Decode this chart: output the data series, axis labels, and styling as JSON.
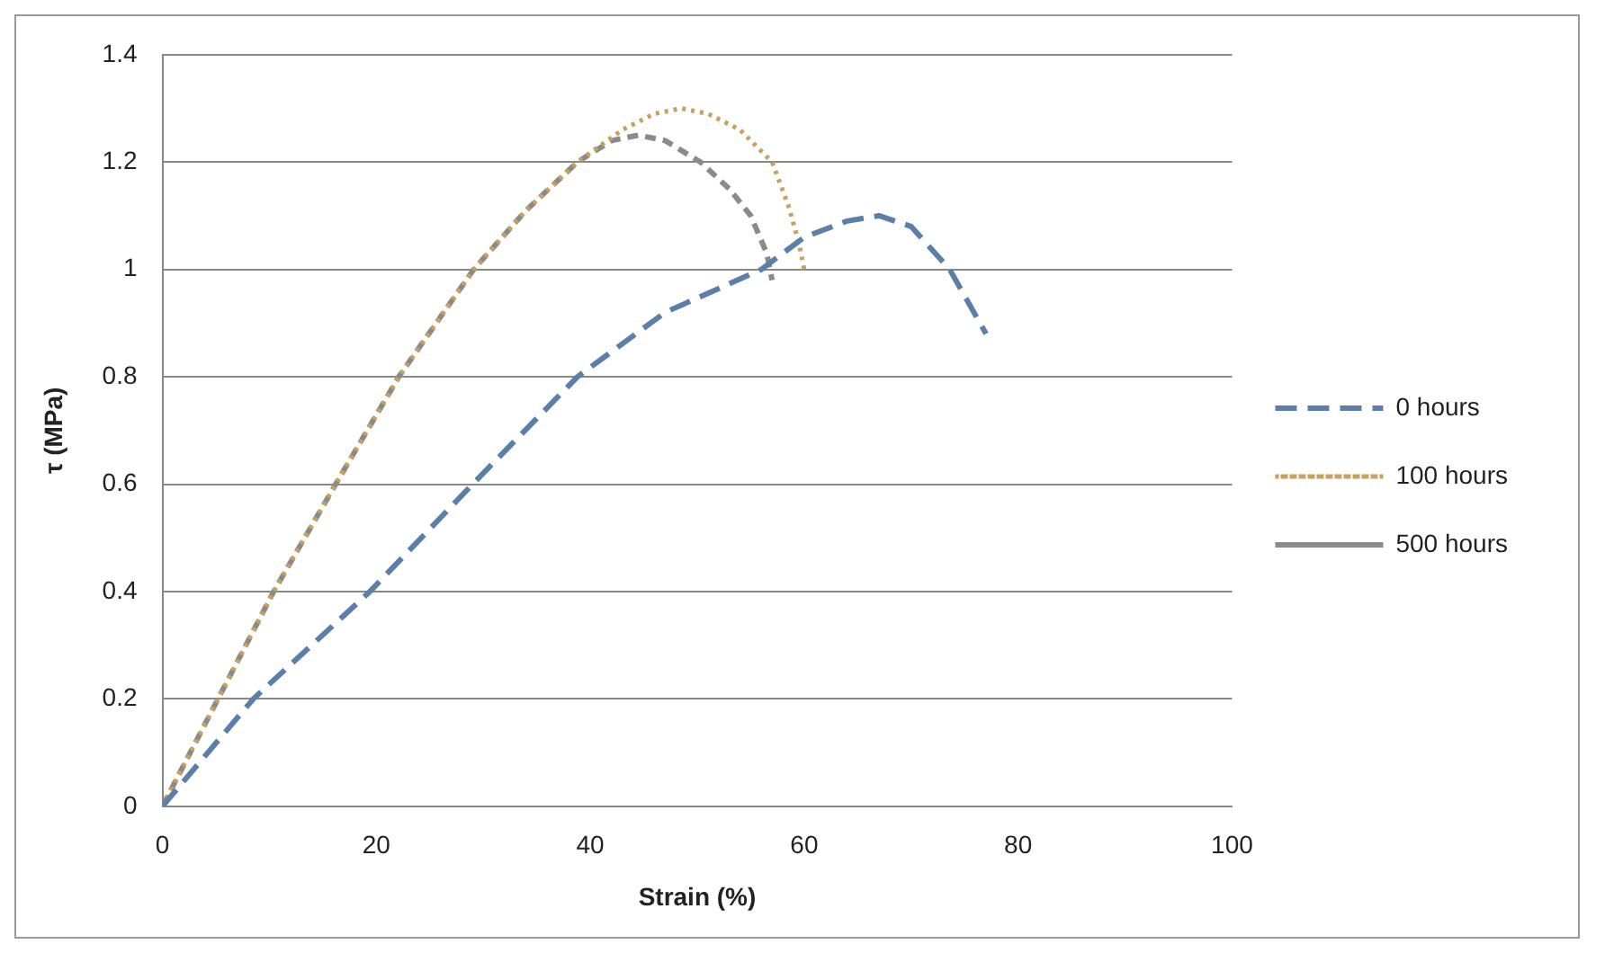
{
  "chart_data": {
    "type": "line",
    "xlabel": "Strain (%)",
    "ylabel": "τ (MPa)",
    "xlim": [
      0,
      100
    ],
    "xticks": [
      0,
      20,
      40,
      60,
      80,
      100
    ],
    "ylim": [
      0,
      1.4
    ],
    "yticks": [
      0,
      0.2,
      0.4,
      0.6,
      0.8,
      1,
      1.2,
      1.4
    ],
    "grid": "y",
    "legend": "right",
    "marker": "none",
    "series": [
      {
        "name": "0 hours",
        "color": "#5b7fa8",
        "line_style": "dashed",
        "x": [
          0,
          8.5,
          19.4,
          29,
          38.8,
          47,
          56,
          60,
          64,
          67,
          70,
          73.6,
          77
        ],
        "values": [
          0,
          0.2,
          0.4,
          0.6,
          0.8,
          0.92,
          1.0,
          1.06,
          1.09,
          1.1,
          1.08,
          1.0,
          0.88
        ]
      },
      {
        "name": "100 hours",
        "color": "#c8a060",
        "line_style": "dotted",
        "x": [
          0,
          5.2,
          10.4,
          16.2,
          22.1,
          29.1,
          34,
          38.8,
          43,
          46,
          48.5,
          51,
          54,
          57,
          58.5,
          59.5,
          60
        ],
        "values": [
          0,
          0.2,
          0.4,
          0.6,
          0.8,
          1.0,
          1.11,
          1.2,
          1.26,
          1.29,
          1.3,
          1.29,
          1.26,
          1.2,
          1.12,
          1.05,
          1.0
        ]
      },
      {
        "name": "500 hours",
        "color": "#8a8a8a",
        "line_style": "dashed",
        "x": [
          0,
          5.2,
          10.4,
          16.2,
          22.1,
          29.1,
          34,
          38.8,
          42,
          44.5,
          47,
          50.3,
          53,
          55,
          56.5,
          57
        ],
        "values": [
          0,
          0.2,
          0.4,
          0.6,
          0.8,
          1.0,
          1.11,
          1.2,
          1.24,
          1.25,
          1.24,
          1.2,
          1.15,
          1.1,
          1.03,
          0.98
        ]
      }
    ]
  }
}
